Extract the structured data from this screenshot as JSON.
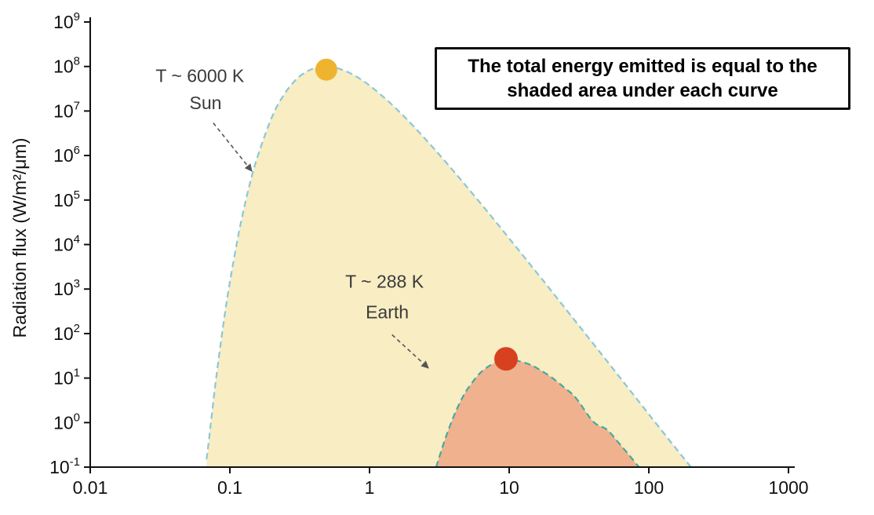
{
  "chart_data": {
    "type": "area",
    "title": "",
    "xlabel": "",
    "ylabel": "Radiation flux (W/m²/μm)",
    "annotation": "The total energy emitted is equal to the shaded area under each curve",
    "x_scale": "log",
    "y_scale": "log",
    "xlim": [
      0.01,
      1000
    ],
    "ylim": [
      0.1,
      1000000000
    ],
    "grid": false,
    "legend": false,
    "x_tick_labels": [
      "0.01",
      "0.1",
      "1",
      "10",
      "100",
      "1000"
    ],
    "x_tick_values": [
      0.01,
      0.1,
      1,
      10,
      100,
      1000
    ],
    "y_tick_exponents": [
      9,
      8,
      7,
      6,
      5,
      4,
      3,
      2,
      1,
      0,
      -1
    ],
    "series": [
      {
        "name": "Sun",
        "label_line1": "T ~ 6000 K",
        "label_line2": "Sun",
        "temperature_k": 6000,
        "fill_color": "#f8edc3",
        "line_color": "#8bc7da",
        "marker": {
          "x": 0.49,
          "y": 85000000,
          "color": "#eeb42f"
        },
        "label_pos": {
          "x1": 0.061,
          "y1": 45000000,
          "x2": 0.067,
          "y2": 11000000
        },
        "arrow": {
          "x_from": 0.076,
          "y_from": 5400000,
          "x_to": 0.145,
          "y_to": 430000
        },
        "points": [
          [
            0.068,
            0.15
          ],
          [
            0.07,
            0.3
          ],
          [
            0.075,
            2.0
          ],
          [
            0.08,
            11
          ],
          [
            0.09,
            170
          ],
          [
            0.1,
            1440
          ],
          [
            0.12,
            31500
          ],
          [
            0.15,
            560000
          ],
          [
            0.2,
            7300000
          ],
          [
            0.25,
            26000000
          ],
          [
            0.3,
            52000000
          ],
          [
            0.35,
            75000000
          ],
          [
            0.4,
            91000000
          ],
          [
            0.45,
            98800000
          ],
          [
            0.49,
            100000000
          ],
          [
            0.55,
            96600000
          ],
          [
            0.6,
            90000000
          ],
          [
            0.7,
            74800000
          ],
          [
            0.8,
            60000000
          ],
          [
            0.9,
            47500000
          ],
          [
            1.0,
            37400000
          ],
          [
            1.2,
            23500000
          ],
          [
            1.5,
            12500000
          ],
          [
            2.0,
            5050000
          ],
          [
            3.0,
            1260000
          ],
          [
            4.0,
            445000
          ],
          [
            5.0,
            195000
          ],
          [
            7.0,
            54500
          ],
          [
            10,
            13800
          ],
          [
            15,
            2840
          ],
          [
            20,
            920
          ],
          [
            30,
            185
          ],
          [
            50,
            24.4
          ],
          [
            70,
            6.4
          ],
          [
            100,
            1.54
          ],
          [
            150,
            0.31
          ],
          [
            200,
            0.1
          ]
        ]
      },
      {
        "name": "Earth",
        "label_line1": "T ~ 288 K",
        "label_line2": "Earth",
        "temperature_k": 288,
        "fill_color": "#f0b18e",
        "line_color": "#46a8a0",
        "marker": {
          "x": 9.5,
          "y": 27,
          "color": "#d8411f"
        },
        "label_pos": {
          "x1": 1.28,
          "y1": 1080,
          "x2": 1.34,
          "y2": 220
        },
        "arrow": {
          "x_from": 1.45,
          "y_from": 94,
          "x_to": 2.67,
          "y_to": 16.3
        },
        "points": [
          [
            3.0,
            0.09
          ],
          [
            3.2,
            0.19
          ],
          [
            3.5,
            0.45
          ],
          [
            4.0,
            1.37
          ],
          [
            4.5,
            3.07
          ],
          [
            5.0,
            5.5
          ],
          [
            6.0,
            11.7
          ],
          [
            7.0,
            17.7
          ],
          [
            8.0,
            22.2
          ],
          [
            9.0,
            24.7
          ],
          [
            10,
            25.5
          ],
          [
            11,
            25.0
          ],
          [
            12,
            23.7
          ],
          [
            14,
            20.2
          ],
          [
            16,
            16.4
          ],
          [
            20,
            10.5
          ],
          [
            25,
            6.0
          ],
          [
            30,
            3.6
          ],
          [
            40,
            1.05
          ],
          [
            50,
            0.7
          ],
          [
            60,
            0.37
          ],
          [
            70,
            0.21
          ],
          [
            85,
            0.1
          ]
        ]
      }
    ]
  }
}
